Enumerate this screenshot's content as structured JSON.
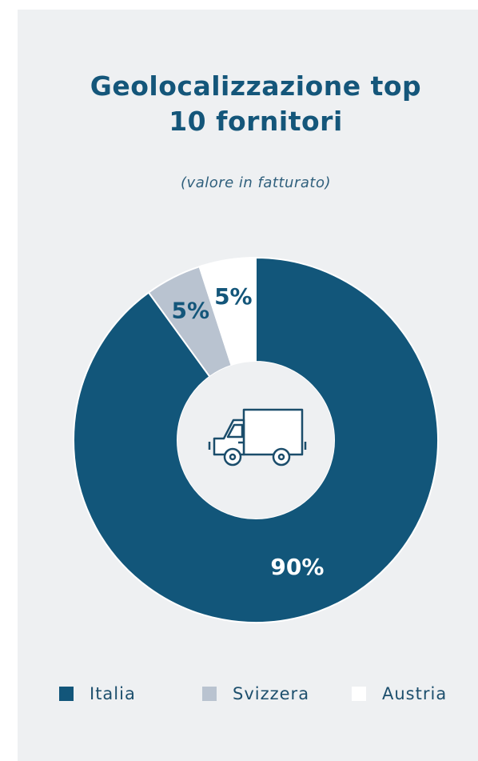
{
  "chart_data": {
    "type": "donut",
    "title": "Geolocalizzazione top 10 fornitori",
    "subtitle": "(valore in fatturato)",
    "categories": [
      "Italia",
      "Svizzera",
      "Austria"
    ],
    "values": [
      90,
      5,
      5
    ],
    "value_labels": [
      "90%",
      "5%",
      "5%"
    ],
    "colors": [
      "#12567a",
      "#b9c3d0",
      "#ffffff"
    ],
    "label_colors": [
      "#ffffff",
      "#14567a",
      "#14567a"
    ]
  }
}
